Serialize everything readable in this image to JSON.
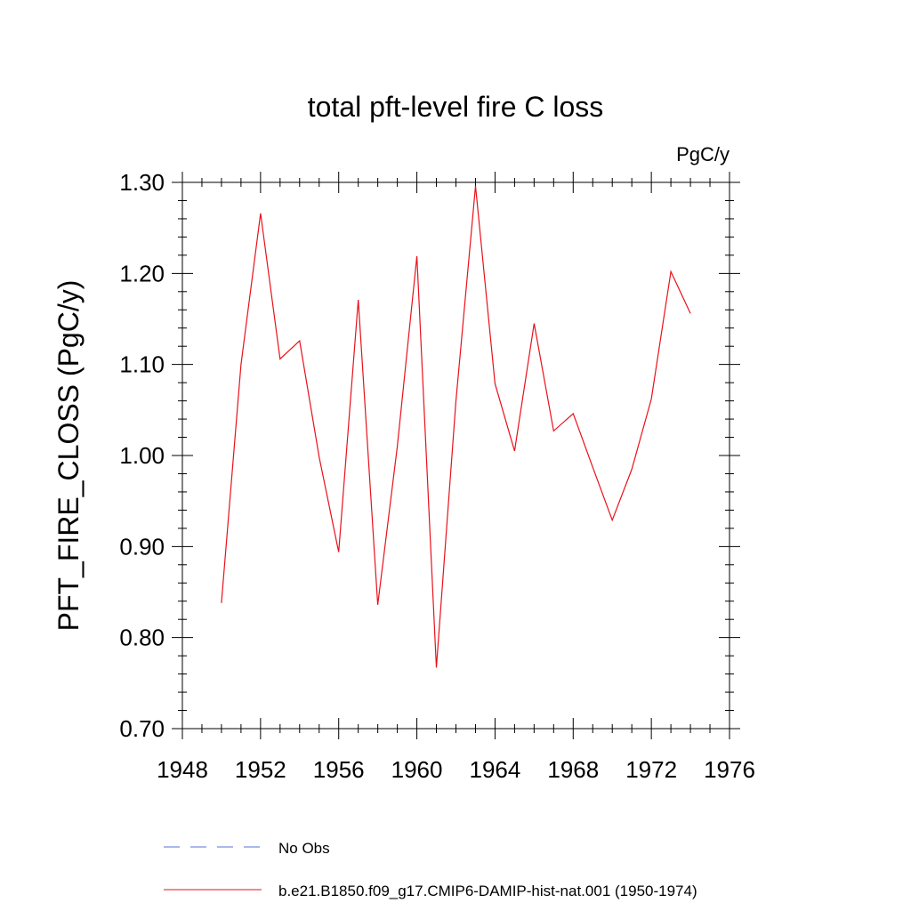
{
  "chart_data": {
    "type": "line",
    "title": "total pft-level fire C loss",
    "units_label": "PgC/y",
    "ylabel": "PFT_FIRE_CLOSS  (PgC/y)",
    "xlabel": "",
    "xlim": [
      1948,
      1976
    ],
    "ylim": [
      0.7,
      1.3
    ],
    "x_ticks": [
      "1948",
      "1952",
      "1956",
      "1960",
      "1964",
      "1968",
      "1972",
      "1976"
    ],
    "y_ticks": [
      "0.70",
      "0.80",
      "0.90",
      "1.00",
      "1.10",
      "1.20",
      "1.30"
    ],
    "grid": false,
    "legend_position": "bottom",
    "series": [
      {
        "name": "b.e21.B1850.f09_g17.CMIP6-DAMIP-hist-nat.001 (1950-1974)",
        "color": "#e8111a",
        "style": "solid",
        "x": [
          1950,
          1951,
          1952,
          1953,
          1954,
          1955,
          1956,
          1957,
          1958,
          1959,
          1960,
          1961,
          1962,
          1963,
          1964,
          1965,
          1966,
          1967,
          1968,
          1969,
          1970,
          1971,
          1972,
          1973,
          1974
        ],
        "values": [
          0.838,
          1.1,
          1.266,
          1.106,
          1.126,
          0.998,
          0.894,
          1.171,
          0.836,
          1.01,
          1.219,
          0.767,
          1.06,
          1.296,
          1.079,
          1.005,
          1.145,
          1.027,
          1.046,
          0.987,
          0.929,
          0.985,
          1.062,
          1.202,
          1.156
        ]
      }
    ],
    "legend": [
      {
        "label": "No Obs",
        "color": "#5a6fd6",
        "style": "dashed"
      },
      {
        "label": "b.e21.B1850.f09_g17.CMIP6-DAMIP-hist-nat.001 (1950-1974)",
        "color": "#e8111a",
        "style": "solid"
      }
    ]
  }
}
